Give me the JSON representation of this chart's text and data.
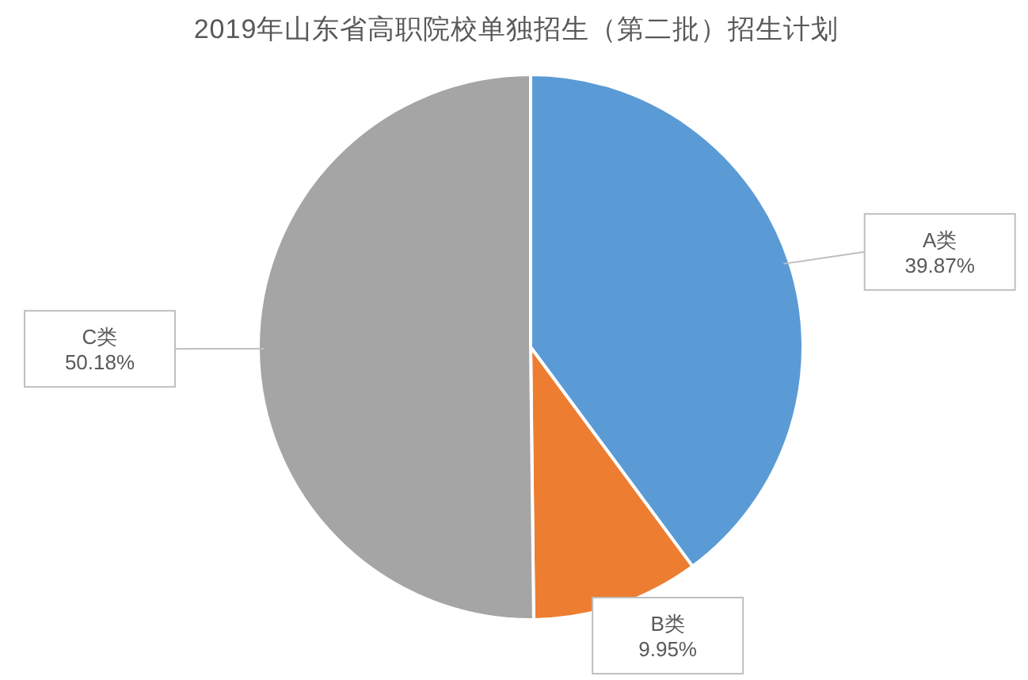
{
  "chart_data": {
    "type": "pie",
    "title": "2019年山东省高职院校单独招生（第二批）招生计划",
    "categories": [
      "A类",
      "B类",
      "C类"
    ],
    "values": [
      39.87,
      9.95,
      50.18
    ],
    "colors": [
      "#5b9bd5",
      "#ed7d31",
      "#a5a5a5"
    ],
    "value_labels": [
      "39.87%",
      "9.95%",
      "50.18%"
    ]
  }
}
